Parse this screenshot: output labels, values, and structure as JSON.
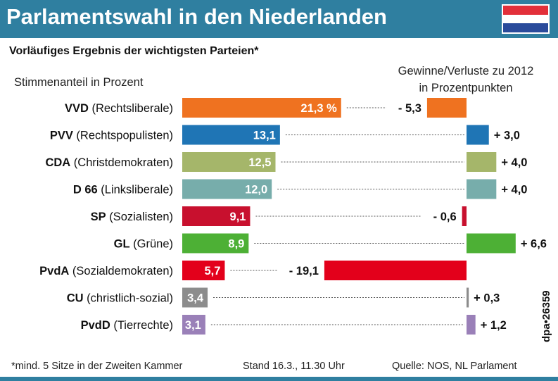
{
  "header": {
    "title": "Parlamentswahl in den Niederlanden",
    "flag_colors": [
      "#e2303a",
      "#ffffff",
      "#2a4b9b"
    ],
    "background_color": "#2f7fa0"
  },
  "subtitle": "Vorläufiges Ergebnis der wichtigsten Parteien*",
  "chart_data": {
    "type": "bar",
    "left_header": "Stimmenanteil in Prozent",
    "right_header_lines": [
      "Gewinne/Verluste zu 2012",
      "in Prozentpunkten"
    ],
    "categories": [
      {
        "name": "VVD",
        "desc": " (Rechtsliberale)"
      },
      {
        "name": "PVV",
        "desc": " (Rechtspopulisten)"
      },
      {
        "name": "CDA",
        "desc": " (Christdemokraten)"
      },
      {
        "name": "D 66",
        "desc": " (Linksliberale)"
      },
      {
        "name": "SP",
        "desc": " (Sozialisten)"
      },
      {
        "name": "GL",
        "desc": " (Grüne)"
      },
      {
        "name": "PvdA",
        "desc": " (Sozialdemokraten)"
      },
      {
        "name": "CU",
        "desc": " (christlich-sozial)"
      },
      {
        "name": "PvdD",
        "desc": " (Tierrechte)"
      }
    ],
    "series": [
      {
        "values": [
          21.3,
          13.1,
          12.5,
          12.0,
          9.1,
          8.9,
          5.7,
          3.4,
          3.1
        ],
        "labels": [
          "21,3 %",
          "13,1",
          "12,5",
          "12,0",
          "9,1",
          "8,9",
          "5,7",
          "3,4",
          "3,1"
        ]
      },
      {
        "values": [
          -5.3,
          3.0,
          4.0,
          4.0,
          -0.6,
          6.6,
          -19.1,
          0.3,
          1.2
        ],
        "labels": [
          "- 5,3",
          "+ 3,0",
          "+ 4,0",
          "+ 4,0",
          "- 0,6",
          "+ 6,6",
          "- 19,1",
          "+ 0,3",
          "+ 1,2"
        ]
      }
    ],
    "colors": [
      "#ef7220",
      "#1f75b5",
      "#a5b66a",
      "#77adab",
      "#c8102e",
      "#4db035",
      "#e3001b",
      "#8c8c8c",
      "#9a80b8"
    ],
    "grid": false,
    "legend": "none"
  },
  "footer": {
    "note": "*mind. 5 Sitze in der Zweiten Kammer",
    "stand": "Stand 16.3., 11.30 Uhr",
    "source": "Quelle: NOS, NL Parlament"
  },
  "credit": "dpa•26359"
}
